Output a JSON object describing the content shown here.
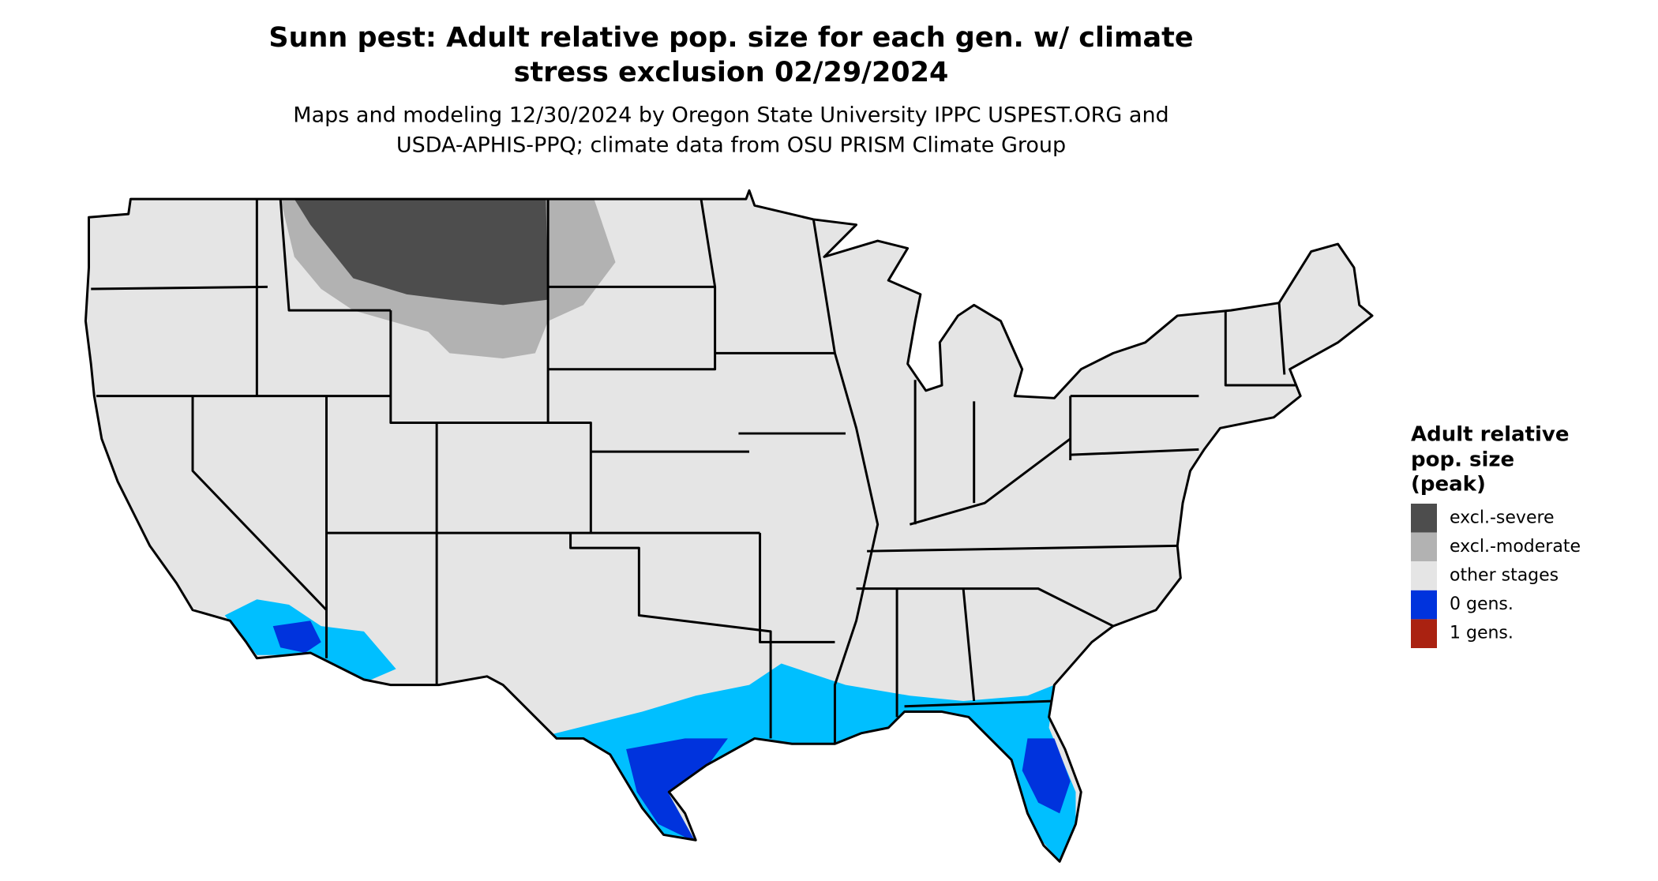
{
  "title": [
    "Sunn pest: Adult relative pop. size for each gen. w/ climate",
    "stress exclusion 02/29/2024"
  ],
  "subtitle": [
    "Maps and modeling 12/30/2024 by Oregon State University IPPC USPEST.ORG and",
    "USDA-APHIS-PPQ; climate data from OSU PRISM Climate Group"
  ],
  "legend": {
    "title": [
      "Adult relative",
      "pop. size",
      "(peak)"
    ],
    "items": [
      {
        "label": "excl.-severe",
        "color": "#4d4d4d"
      },
      {
        "label": "excl.-moderate",
        "color": "#b2b2b2"
      },
      {
        "label": "other stages",
        "color": "#e5e5e5"
      },
      {
        "label": "0 gens.",
        "color": "#0033dd"
      },
      {
        "label": "1 gens.",
        "color": "#aa2211"
      }
    ]
  }
}
